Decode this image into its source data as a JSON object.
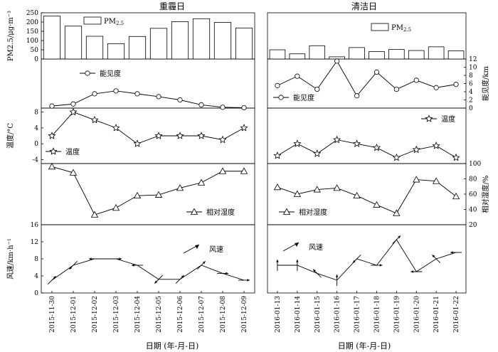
{
  "chart_data": {
    "type": "multi-panel",
    "title_heavy": "重霾日",
    "title_clean": "清洁日",
    "xlabel": "日期 (年-月-日)",
    "dates_heavy": [
      "2015-11-30",
      "2015-12-01",
      "2015-12-02",
      "2015-12-03",
      "2015-12-04",
      "2015-12-05",
      "2015-12-06",
      "2015-12-07",
      "2015-12-08",
      "2015-12-09"
    ],
    "dates_clean": [
      "2016-01-13",
      "2016-01-14",
      "2016-01-15",
      "2016-01-16",
      "2016-01-17",
      "2016-01-18",
      "2016-01-19",
      "2016-01-20",
      "2016-01-21",
      "2016-01-22"
    ],
    "pm25": {
      "ylabel": "PM2.5/μg·m⁻³",
      "legend_main": "PM",
      "legend_sub": "2.5",
      "ylim": [
        0,
        250
      ],
      "ticks": [
        0,
        50,
        100,
        150,
        200,
        250
      ],
      "heavy": [
        232,
        178,
        123,
        83,
        122,
        166,
        202,
        218,
        198,
        168
      ],
      "clean": [
        50,
        28,
        72,
        12,
        62,
        40,
        52,
        46,
        66,
        44
      ]
    },
    "visibility": {
      "label": "能见度",
      "ylabel": "能见度/km",
      "ylim": [
        0,
        12
      ],
      "ticks": [
        0,
        2,
        4,
        6,
        8,
        10,
        12
      ],
      "heavy": [
        0.5,
        1.0,
        3.5,
        4.2,
        3.5,
        2.8,
        2.0,
        0.8,
        0.2,
        0.1
      ],
      "clean": [
        5.5,
        7.8,
        4.6,
        11.5,
        3.0,
        8.8,
        4.6,
        6.8,
        5.0,
        5.8
      ]
    },
    "temperature": {
      "label": "温度",
      "ylabel": "温度/°C",
      "ylim": [
        -5,
        9
      ],
      "ticks": [
        -4,
        0,
        4,
        8
      ],
      "heavy": [
        2,
        8,
        6,
        4,
        0,
        2,
        2,
        2,
        1,
        4
      ],
      "clean": [
        -3,
        0,
        -2.5,
        1,
        0,
        -1,
        -3.5,
        -1.5,
        -0.5,
        -3.5
      ]
    },
    "humidity": {
      "label": "相对湿度",
      "ylabel": "相对湿度/%",
      "ylim": [
        20,
        100
      ],
      "ticks": [
        20,
        40,
        60,
        80,
        100
      ],
      "heavy": [
        96,
        88,
        33,
        42,
        58,
        59,
        68,
        75,
        90,
        90
      ],
      "clean": [
        69,
        60,
        66,
        68,
        58,
        46,
        35,
        79,
        77,
        57
      ]
    },
    "wind": {
      "label": "风速",
      "ylabel": "风速/km·h⁻¹",
      "ylim": [
        0,
        16
      ],
      "ticks": [
        0,
        4,
        8,
        12,
        16
      ],
      "heavy": [
        3,
        6.5,
        8,
        8,
        6.5,
        3.2,
        3.2,
        6.5,
        4.6,
        3
      ],
      "heavy_dir": [
        45,
        225,
        270,
        90,
        270,
        225,
        45,
        45,
        90,
        90
      ],
      "clean": [
        6.5,
        6.5,
        4.6,
        3,
        8,
        6.5,
        12.5,
        5,
        8,
        9.5
      ],
      "clean_dir": [
        0,
        0,
        315,
        0,
        225,
        90,
        45,
        270,
        315,
        270
      ]
    }
  }
}
